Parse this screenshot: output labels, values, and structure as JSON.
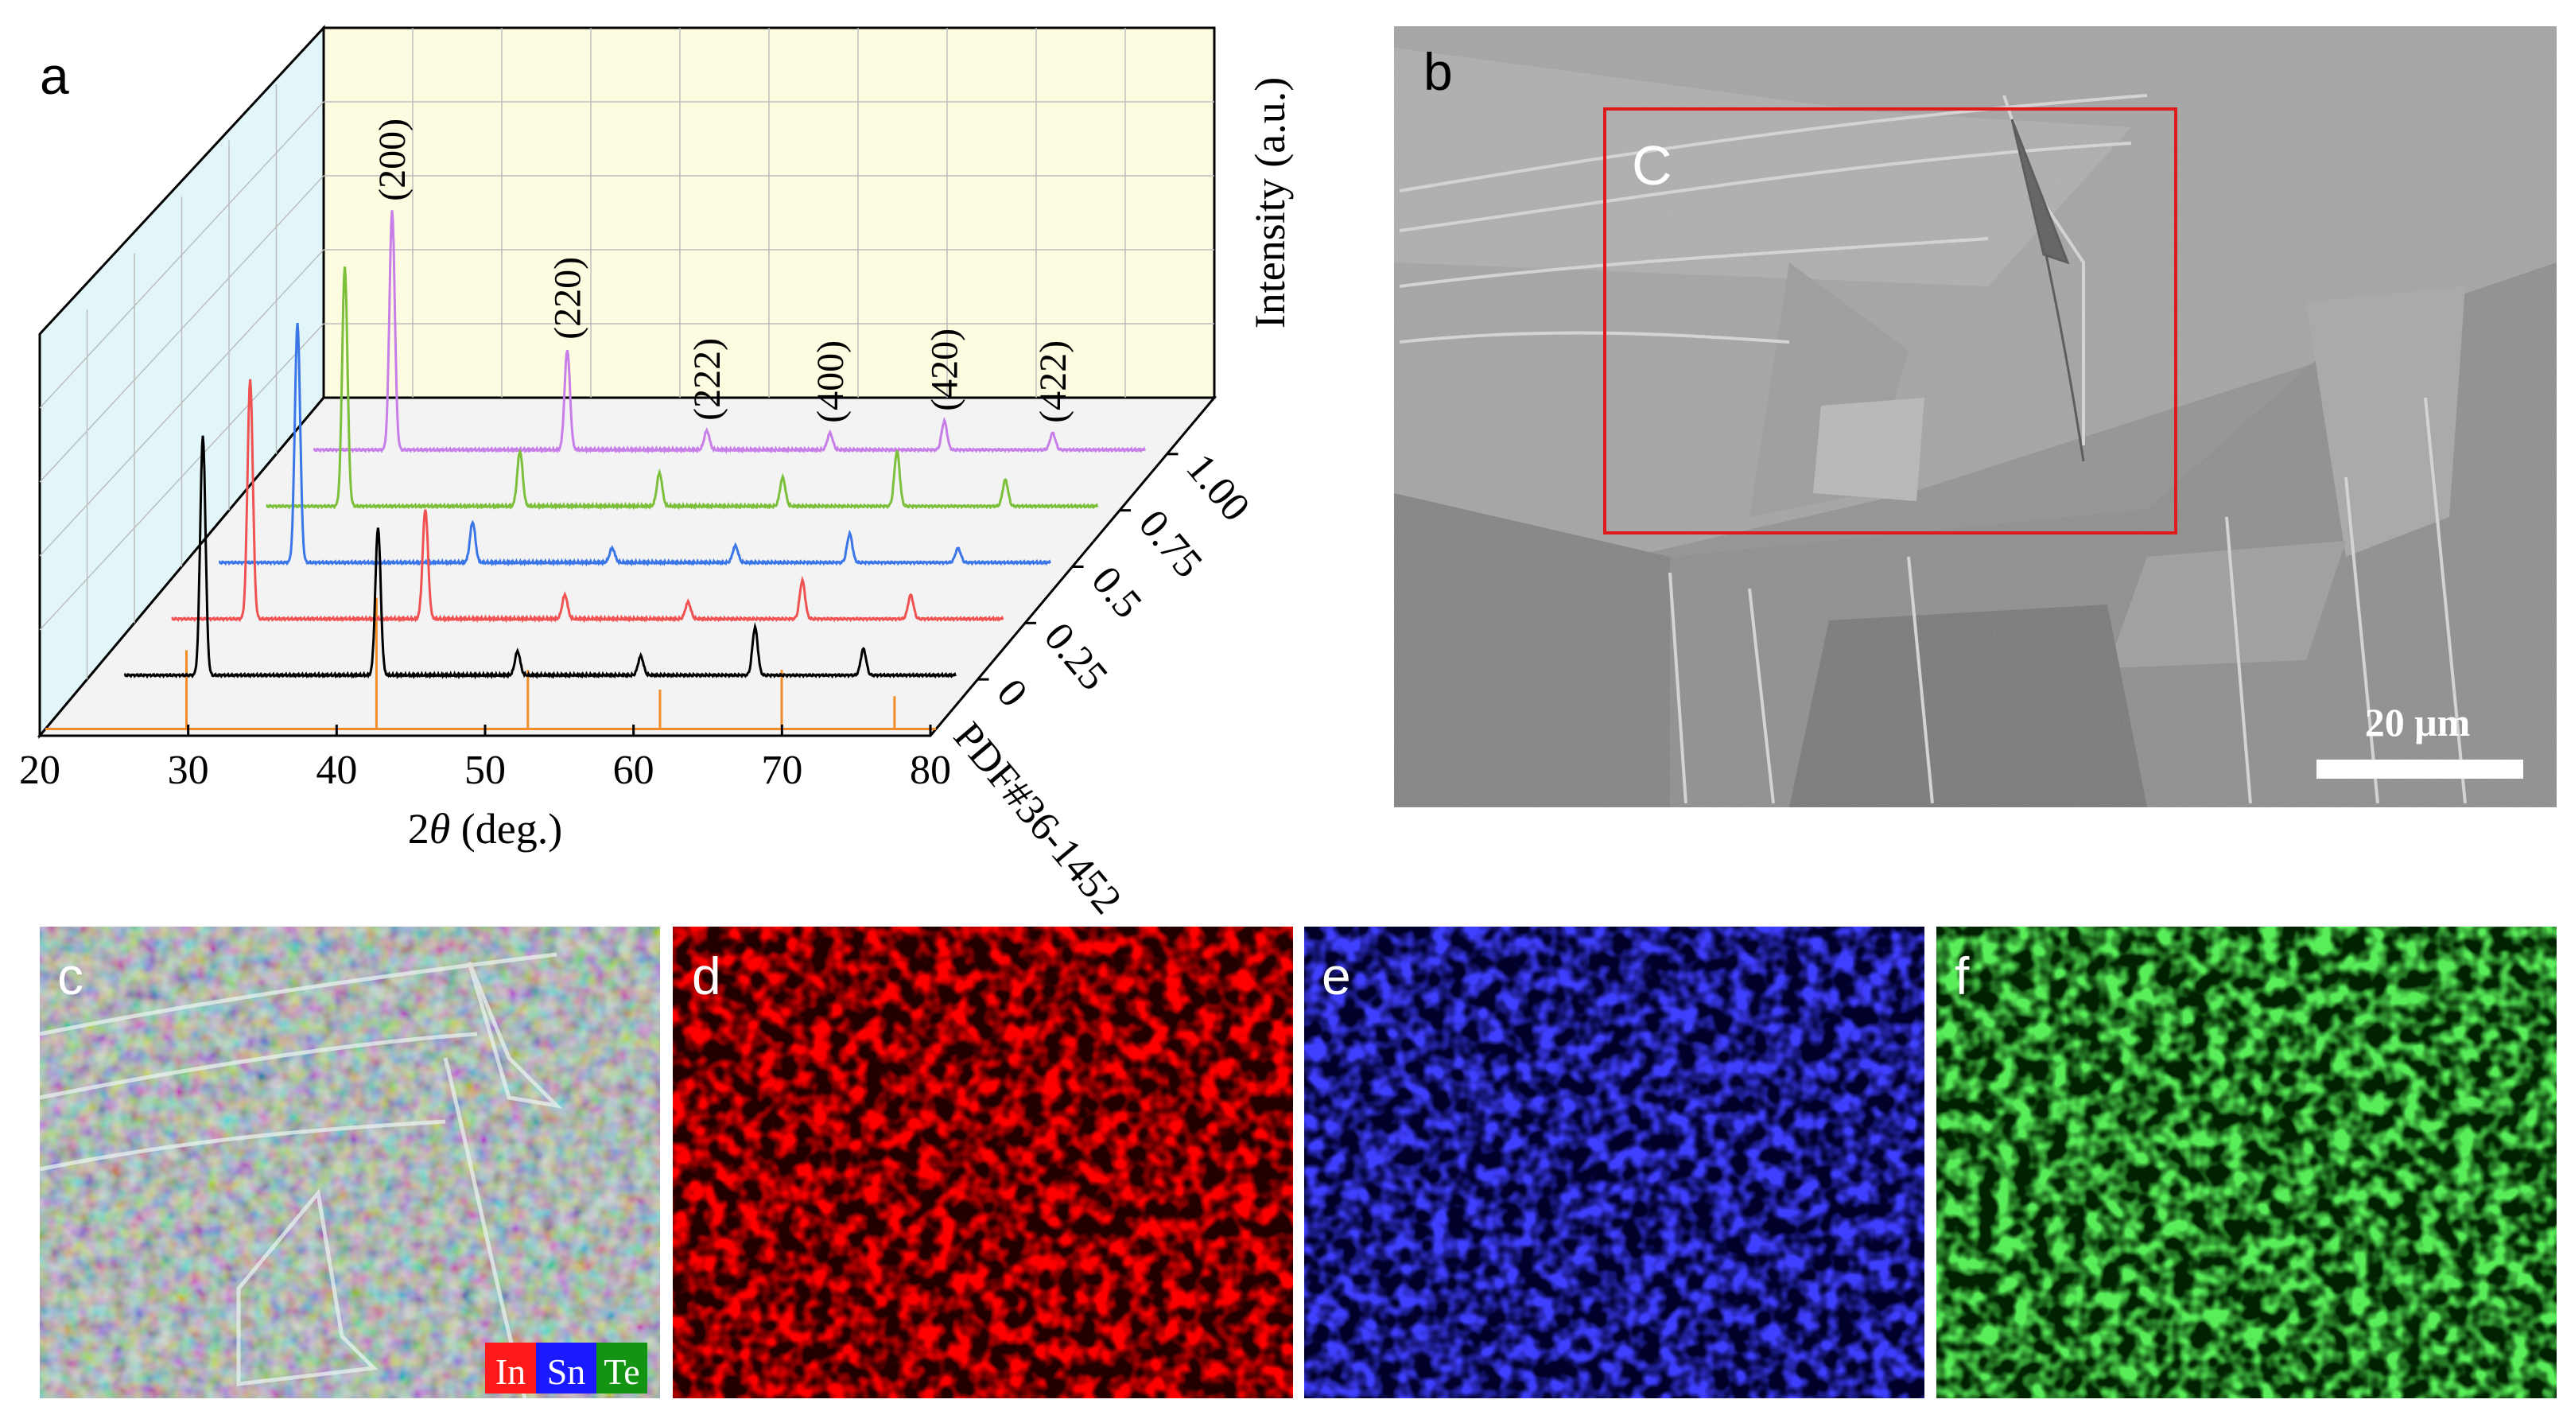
{
  "panels": {
    "a": {
      "label": "a"
    },
    "b": {
      "label": "b",
      "box_label": "C",
      "scale_bar": "20 μm"
    },
    "c": {
      "label": "c",
      "legend": [
        "In",
        "Sn",
        "Te"
      ]
    },
    "d": {
      "label": "d"
    },
    "e": {
      "label": "e"
    },
    "f": {
      "label": "f"
    }
  },
  "colors": {
    "In": "#ff1a1a",
    "Sn": "#1a1aff",
    "Te": "#139413"
  },
  "chart_data": {
    "type": "line",
    "xlabel_prefix": "2",
    "xlabel_symbol": "θ",
    "xlabel_suffix": " (deg.)",
    "zlabel": "Intensity (a.u.)",
    "xlim": [
      20,
      80
    ],
    "xticks": [
      "20",
      "30",
      "40",
      "50",
      "60",
      "70",
      "80"
    ],
    "reference": {
      "name": "PDF#36-1452",
      "color": "#f28c28",
      "peaks": [
        {
          "x": 29.5,
          "h": 0.6
        },
        {
          "x": 42.3,
          "h": 1.0
        },
        {
          "x": 52.5,
          "h": 0.45
        },
        {
          "x": 61.4,
          "h": 0.3
        },
        {
          "x": 69.6,
          "h": 0.45
        },
        {
          "x": 77.2,
          "h": 0.25
        }
      ]
    },
    "series": [
      {
        "name": "0",
        "color": "#000000",
        "peaks": [
          {
            "x": 27.8,
            "h": 1.0
          },
          {
            "x": 39.6,
            "h": 0.62
          },
          {
            "x": 49.0,
            "h": 0.1
          },
          {
            "x": 57.3,
            "h": 0.08
          },
          {
            "x": 65.0,
            "h": 0.2
          },
          {
            "x": 72.3,
            "h": 0.11
          }
        ]
      },
      {
        "name": "0.25",
        "color": "#f05252",
        "peaks": [
          {
            "x": 27.8,
            "h": 1.0
          },
          {
            "x": 39.6,
            "h": 0.46
          },
          {
            "x": 49.0,
            "h": 0.1
          },
          {
            "x": 57.3,
            "h": 0.07
          },
          {
            "x": 65.0,
            "h": 0.16
          },
          {
            "x": 72.3,
            "h": 0.1
          }
        ]
      },
      {
        "name": "0.5",
        "color": "#3a76e8",
        "peaks": [
          {
            "x": 27.8,
            "h": 1.0
          },
          {
            "x": 39.6,
            "h": 0.17
          },
          {
            "x": 49.0,
            "h": 0.06
          },
          {
            "x": 57.3,
            "h": 0.07
          },
          {
            "x": 65.0,
            "h": 0.12
          },
          {
            "x": 72.3,
            "h": 0.06
          }
        ]
      },
      {
        "name": "0.75",
        "color": "#7cbf3a",
        "peaks": [
          {
            "x": 27.8,
            "h": 1.0
          },
          {
            "x": 39.6,
            "h": 0.23
          },
          {
            "x": 49.0,
            "h": 0.14
          },
          {
            "x": 57.3,
            "h": 0.12
          },
          {
            "x": 65.0,
            "h": 0.23
          },
          {
            "x": 72.3,
            "h": 0.11
          }
        ]
      },
      {
        "name": "1.00",
        "color": "#c77ee8",
        "peaks": [
          {
            "x": 27.8,
            "h": 1.0
          },
          {
            "x": 39.6,
            "h": 0.42
          },
          {
            "x": 49.0,
            "h": 0.08
          },
          {
            "x": 57.3,
            "h": 0.07
          },
          {
            "x": 65.0,
            "h": 0.12
          },
          {
            "x": 72.3,
            "h": 0.07
          }
        ]
      }
    ],
    "peak_labels": [
      {
        "x": 27.8,
        "text": "(200)"
      },
      {
        "x": 39.6,
        "text": "(220)"
      },
      {
        "x": 49.0,
        "text": "(222)"
      },
      {
        "x": 57.3,
        "text": "(400)"
      },
      {
        "x": 65.0,
        "text": "(420)"
      },
      {
        "x": 72.3,
        "text": "(422)"
      }
    ]
  }
}
